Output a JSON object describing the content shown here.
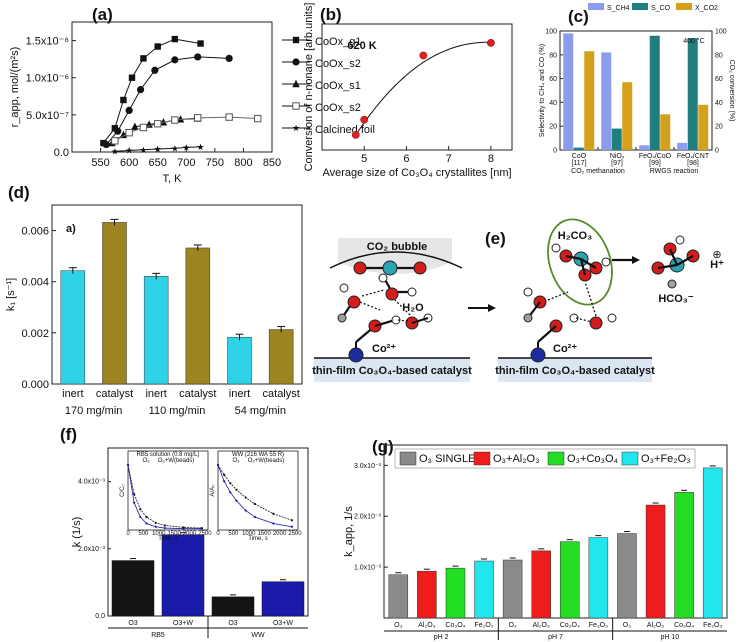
{
  "panels": [
    "(a)",
    "(b)",
    "(c)",
    "(d)",
    "(e)",
    "(f)",
    "(g)"
  ],
  "chart_data": [
    {
      "id": "a",
      "type": "line",
      "xlabel": "T, K",
      "ylabel": "r_app, mol/(m²s)",
      "xlim": [
        500,
        850
      ],
      "ylim": [
        0,
        1.75e-06
      ],
      "xticks": [
        "550",
        "600",
        "650",
        "700",
        "750",
        "800",
        "850"
      ],
      "yticks": [
        "0.0",
        "5.0x10⁻⁷",
        "1.0x10⁻⁶",
        "1.5x10⁻⁶"
      ],
      "ytickvals": [
        0,
        5e-07,
        1e-06,
        1.5e-06
      ],
      "series": [
        {
          "name": "CoOx_g1",
          "marker": "square-filled",
          "x": [
            555,
            575,
            590,
            605,
            625,
            650,
            680,
            725
          ],
          "y": [
            1.2e-07,
            3.2e-07,
            7e-07,
            1e-06,
            1.26e-06,
            1.42e-06,
            1.52e-06,
            1.46e-06
          ]
        },
        {
          "name": "CoOx_s2",
          "marker": "circle-filled",
          "x": [
            560,
            580,
            600,
            620,
            645,
            680,
            720,
            775
          ],
          "y": [
            1e-07,
            2.8e-07,
            5.6e-07,
            8.4e-07,
            1.1e-06,
            1.24e-06,
            1.28e-06,
            1.26e-06
          ]
        },
        {
          "name": "CoOx_s1",
          "marker": "triangle-filled",
          "x": [
            570,
            590,
            610,
            635,
            660,
            690,
            720
          ],
          "y": [
            1.2e-07,
            2.3e-07,
            3.4e-07,
            3.7e-07,
            4e-07,
            4.4e-07,
            4.5e-07
          ]
        },
        {
          "name": "CoOx_s2",
          "marker": "square-open",
          "x": [
            575,
            600,
            625,
            650,
            680,
            720,
            775,
            825
          ],
          "y": [
            1.5e-07,
            2.6e-07,
            3.3e-07,
            3.8e-07,
            4.3e-07,
            4.6e-07,
            4.7e-07,
            4.5e-07
          ]
        },
        {
          "name": "Calcined foil",
          "marker": "star",
          "x": [
            575,
            600,
            625,
            650,
            680,
            700,
            725
          ],
          "y": [
            1e-08,
            2e-08,
            3e-08,
            4e-08,
            5e-08,
            6e-08,
            7e-08
          ]
        }
      ]
    },
    {
      "id": "b",
      "type": "scatter",
      "xlabel": "Average size of Co₃O₄ crystallites [nm]",
      "ylabel": "Conversion of n-nonane [arb.units]",
      "xlim": [
        4,
        8.5
      ],
      "ylim": [
        0,
        5
      ],
      "annotation": "620 K",
      "xticks": [
        "5",
        "6",
        "7",
        "8"
      ],
      "xtickvals": [
        5,
        6,
        7,
        8
      ],
      "x": [
        4.8,
        5.0,
        6.4,
        8.0
      ],
      "y": [
        0.6,
        1.2,
        3.75,
        4.25
      ]
    },
    {
      "id": "c",
      "type": "bar",
      "legend": [
        "S_CH4",
        "S_CO",
        "X_CO2"
      ],
      "annotation": "400 °C",
      "ylabel_left": "Selectivity to CH₄ and CO (%)",
      "ylabel_right": "CO₂ conversion (%)",
      "categories": [
        "CoO",
        "NiOₓ",
        "FeOₓ/CoO",
        "FeOₓ/CNT"
      ],
      "refs": [
        "[117]",
        "[97]",
        "[99]",
        "[98]"
      ],
      "groups": [
        "CO₂ methanation",
        "RWGS reaction"
      ],
      "yticks": [
        "0",
        "20",
        "40",
        "60",
        "80",
        "100"
      ],
      "series": [
        {
          "name": "S_CH4",
          "values": [
            98,
            82,
            4,
            6
          ]
        },
        {
          "name": "S_CO",
          "values": [
            2,
            18,
            96,
            94
          ]
        },
        {
          "name": "X_CO2",
          "values": [
            83,
            57,
            30,
            38
          ]
        }
      ]
    },
    {
      "id": "d",
      "type": "bar",
      "inset_label": "a)",
      "ylabel": "k₁ [s⁻¹]",
      "ylim": [
        0,
        0.007
      ],
      "yticks": [
        "0.000",
        "0.002",
        "0.004",
        "0.006"
      ],
      "ytickvals": [
        0,
        0.002,
        0.004,
        0.006
      ],
      "categories": [
        "inert",
        "catalyst",
        "inert",
        "catalyst",
        "inert",
        "catalyst"
      ],
      "groups": [
        "170 mg/min",
        "110 mg/min",
        "54 mg/min"
      ],
      "values": [
        0.00443,
        0.00632,
        0.00421,
        0.00532,
        0.00183,
        0.00213
      ]
    },
    {
      "id": "f",
      "type": "bar",
      "ylabel": "k (1/s)",
      "ylim": [
        0,
        0.005
      ],
      "yticks": [
        "0.0",
        "2.0x10⁻³",
        "4.0x10⁻³"
      ],
      "ytickvals": [
        0,
        0.002,
        0.004
      ],
      "categories": [
        "O3",
        "O3+W",
        "O3",
        "O3+W"
      ],
      "groups": [
        "RB5",
        "WW"
      ],
      "values": [
        0.00165,
        0.00242,
        0.00057,
        0.00102
      ],
      "insets": [
        {
          "title": "RB5 solution (0.8 mg/L)",
          "legend": [
            "O₃",
            "O₃+W(beads)"
          ],
          "xlabel": "Time, s",
          "ylabel": "C/C₀",
          "xticks": [
            "0",
            "500",
            "1000",
            "1500",
            "2000",
            "2500"
          ],
          "x": [
            0,
            200,
            400,
            600,
            900,
            1200,
            1800,
            2400
          ],
          "series": [
            [
              1,
              0.55,
              0.32,
              0.2,
              0.11,
              0.07,
              0.04,
              0.03
            ],
            [
              1,
              0.42,
              0.2,
              0.1,
              0.05,
              0.03,
              0.02,
              0.02
            ]
          ]
        },
        {
          "title": "WW (216 WA 55 R)",
          "legend": [
            "O₃",
            "O₃+W(beads)"
          ],
          "xlabel": "Time, s",
          "ylabel": "A/A₀",
          "xticks": [
            "0",
            "500",
            "1000",
            "1500",
            "2000",
            "2500"
          ],
          "x": [
            0,
            200,
            400,
            600,
            900,
            1200,
            1800,
            2400
          ],
          "series": [
            [
              1,
              0.85,
              0.72,
              0.62,
              0.5,
              0.4,
              0.25,
              0.15
            ],
            [
              1,
              0.75,
              0.58,
              0.45,
              0.3,
              0.2,
              0.1,
              0.05
            ]
          ]
        }
      ]
    },
    {
      "id": "g",
      "type": "bar",
      "ylabel": "k_app, 1/s",
      "ylim": [
        0,
        0.0034
      ],
      "yticks": [
        "1.0x10⁻³",
        "2.0x10⁻³",
        "3.0x10⁻³"
      ],
      "ytickvals": [
        0.001,
        0.002,
        0.003
      ],
      "legend": [
        "O₃ SINGLE",
        "O₃+Al₂O₃",
        "O₃+Co₃O₄",
        "O₃+Fe₂O₃"
      ],
      "categories": [
        "O₃",
        "Al₂O₃",
        "Co₃O₄",
        "Fe₂O₃",
        "O₃",
        "Al₂O₃",
        "Co₃O₄",
        "Fe₂O₃",
        "O₃",
        "Al₂O₃",
        "Co₃O₄",
        "Fe₂O₃"
      ],
      "groups": [
        "pH 2",
        "pH 7",
        "pH 10"
      ],
      "values": [
        0.00085,
        0.00092,
        0.00098,
        0.00112,
        0.00114,
        0.00132,
        0.0015,
        0.00158,
        0.00166,
        0.00222,
        0.00247,
        0.00295
      ]
    }
  ],
  "diagram_e": {
    "labels": [
      "CO₂ bubble",
      "H₂O",
      "Co²⁺",
      "thin-film Co₃O₄-based catalyst",
      "H₂CO₃",
      "Co²⁺",
      "thin-film Co₃O₄-based catalyst",
      "HCO₃⁻",
      "H⁺",
      "⊕"
    ]
  },
  "colors": {
    "c": [
      "#8c9cec",
      "#1f7f7f",
      "#d4a21a"
    ],
    "d": [
      "#2fd3e8",
      "#9c8420"
    ],
    "f": [
      "#141414",
      "#1a1aa8"
    ],
    "g": [
      "#8a8a8a",
      "#ee1c1c",
      "#22dd22",
      "#22e6ee"
    ],
    "red": "#e02020",
    "diagramRed": "#d41c1c",
    "diagramTeal": "#2ca4b0",
    "diagramGrey": "#a0a0a0",
    "diagramBlue": "#1c2ca0",
    "plate": "#dbe6f2"
  }
}
